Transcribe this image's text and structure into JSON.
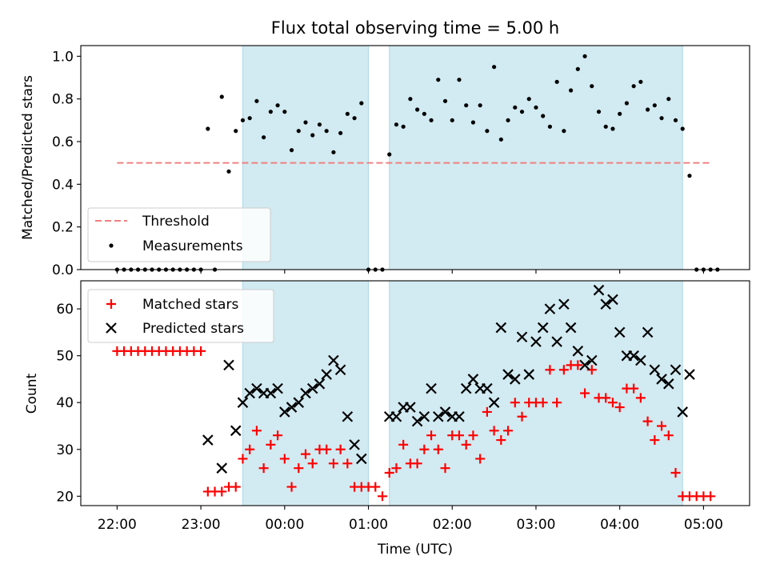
{
  "title": "Flux total observing time = 5.00 h",
  "colors": {
    "shade": "#add8e6",
    "threshold": "#f08080",
    "matched": "#ff0000",
    "predicted": "#000000",
    "measurement": "#000000"
  },
  "chart_data": [
    {
      "type": "scatter",
      "ylabel": "Matched/Predicted stars",
      "xlabel": "",
      "xlim": [
        "21:34",
        "05:33"
      ],
      "ylim": [
        0,
        1.05
      ],
      "yticks": [
        "0.0",
        "0.2",
        "0.4",
        "0.6",
        "0.8",
        "1.0"
      ],
      "grid": false,
      "legend": {
        "location": "lower-left",
        "entries": [
          "Threshold",
          "Measurements"
        ]
      },
      "shaded_intervals": [
        [
          "23:30",
          "01:00"
        ],
        [
          "01:15",
          "04:45"
        ]
      ],
      "threshold": {
        "name": "Threshold",
        "value": 0.5,
        "x": [
          "22:00",
          "05:05"
        ],
        "style": "dashed"
      },
      "series": [
        {
          "name": "Measurements",
          "points": [
            [
              "22:00",
              0
            ],
            [
              "22:05",
              0
            ],
            [
              "22:10",
              0
            ],
            [
              "22:15",
              0
            ],
            [
              "22:20",
              0
            ],
            [
              "22:25",
              0
            ],
            [
              "22:30",
              0
            ],
            [
              "22:35",
              0
            ],
            [
              "22:40",
              0
            ],
            [
              "22:45",
              0
            ],
            [
              "22:50",
              0
            ],
            [
              "22:55",
              0
            ],
            [
              "23:00",
              0
            ],
            [
              "23:05",
              0.66
            ],
            [
              "23:10",
              0
            ],
            [
              "23:15",
              0.81
            ],
            [
              "23:20",
              0.46
            ],
            [
              "23:25",
              0.65
            ],
            [
              "23:30",
              0.7
            ],
            [
              "23:35",
              0.71
            ],
            [
              "23:40",
              0.79
            ],
            [
              "23:45",
              0.62
            ],
            [
              "23:50",
              0.74
            ],
            [
              "23:55",
              0.77
            ],
            [
              "00:00",
              0.74
            ],
            [
              "00:05",
              0.56
            ],
            [
              "00:10",
              0.65
            ],
            [
              "00:15",
              0.69
            ],
            [
              "00:20",
              0.63
            ],
            [
              "00:25",
              0.68
            ],
            [
              "00:30",
              0.65
            ],
            [
              "00:35",
              0.55
            ],
            [
              "00:40",
              0.64
            ],
            [
              "00:45",
              0.73
            ],
            [
              "00:50",
              0.71
            ],
            [
              "00:55",
              0.78
            ],
            [
              "01:00",
              0
            ],
            [
              "01:05",
              0
            ],
            [
              "01:10",
              0
            ],
            [
              "01:15",
              0.54
            ],
            [
              "01:20",
              0.68
            ],
            [
              "01:25",
              0.67
            ],
            [
              "01:30",
              0.8
            ],
            [
              "01:35",
              0.75
            ],
            [
              "01:40",
              0.73
            ],
            [
              "01:45",
              0.7
            ],
            [
              "01:50",
              0.89
            ],
            [
              "01:55",
              0.79
            ],
            [
              "02:00",
              0.7
            ],
            [
              "02:05",
              0.89
            ],
            [
              "02:10",
              0.77
            ],
            [
              "02:15",
              0.69
            ],
            [
              "02:20",
              0.77
            ],
            [
              "02:25",
              0.65
            ],
            [
              "02:30",
              0.95
            ],
            [
              "02:35",
              0.61
            ],
            [
              "02:40",
              0.7
            ],
            [
              "02:45",
              0.76
            ],
            [
              "02:50",
              0.74
            ],
            [
              "02:55",
              0.8
            ],
            [
              "03:00",
              0.76
            ],
            [
              "03:05",
              0.72
            ],
            [
              "03:10",
              0.67
            ],
            [
              "03:15",
              0.88
            ],
            [
              "03:20",
              0.65
            ],
            [
              "03:25",
              0.84
            ],
            [
              "03:30",
              0.94
            ],
            [
              "03:35",
              1.0
            ],
            [
              "03:40",
              0.86
            ],
            [
              "03:45",
              0.74
            ],
            [
              "03:50",
              0.67
            ],
            [
              "03:55",
              0.66
            ],
            [
              "04:00",
              0.73
            ],
            [
              "04:05",
              0.78
            ],
            [
              "04:10",
              0.86
            ],
            [
              "04:15",
              0.88
            ],
            [
              "04:20",
              0.75
            ],
            [
              "04:25",
              0.77
            ],
            [
              "04:30",
              0.71
            ],
            [
              "04:35",
              0.8
            ],
            [
              "04:40",
              0.7
            ],
            [
              "04:45",
              0.66
            ],
            [
              "04:50",
              0.44
            ],
            [
              "04:55",
              0
            ],
            [
              "05:00",
              0
            ],
            [
              "05:05",
              0
            ],
            [
              "05:10",
              0
            ]
          ]
        }
      ]
    },
    {
      "type": "scatter",
      "xlabel": "Time (UTC)",
      "ylabel": "Count",
      "xlim": [
        "21:34",
        "05:33"
      ],
      "ylim": [
        18,
        66
      ],
      "xticks": [
        "22:00",
        "23:00",
        "00:00",
        "01:00",
        "02:00",
        "03:00",
        "04:00",
        "05:00"
      ],
      "yticks": [
        "20",
        "30",
        "40",
        "50",
        "60"
      ],
      "grid": false,
      "legend": {
        "location": "top-left",
        "entries": [
          "Matched stars",
          "Predicted stars"
        ]
      },
      "shaded_intervals": [
        [
          "23:30",
          "01:00"
        ],
        [
          "01:15",
          "04:45"
        ]
      ],
      "series": [
        {
          "name": "Matched stars",
          "marker": "plus",
          "points": [
            [
              "22:00",
              51
            ],
            [
              "22:05",
              51
            ],
            [
              "22:10",
              51
            ],
            [
              "22:15",
              51
            ],
            [
              "22:20",
              51
            ],
            [
              "22:25",
              51
            ],
            [
              "22:30",
              51
            ],
            [
              "22:35",
              51
            ],
            [
              "22:40",
              51
            ],
            [
              "22:45",
              51
            ],
            [
              "22:50",
              51
            ],
            [
              "22:55",
              51
            ],
            [
              "23:00",
              51
            ],
            [
              "23:05",
              21
            ],
            [
              "23:10",
              21
            ],
            [
              "23:15",
              21
            ],
            [
              "23:20",
              22
            ],
            [
              "23:25",
              22
            ],
            [
              "23:30",
              28
            ],
            [
              "23:35",
              30
            ],
            [
              "23:40",
              34
            ],
            [
              "23:45",
              26
            ],
            [
              "23:50",
              31
            ],
            [
              "23:55",
              33
            ],
            [
              "00:00",
              28
            ],
            [
              "00:05",
              22
            ],
            [
              "00:10",
              26
            ],
            [
              "00:15",
              29
            ],
            [
              "00:20",
              27
            ],
            [
              "00:25",
              30
            ],
            [
              "00:30",
              30
            ],
            [
              "00:35",
              27
            ],
            [
              "00:40",
              30
            ],
            [
              "00:45",
              27
            ],
            [
              "00:50",
              22
            ],
            [
              "00:55",
              22
            ],
            [
              "01:00",
              22
            ],
            [
              "01:05",
              22
            ],
            [
              "01:10",
              20
            ],
            [
              "01:15",
              25
            ],
            [
              "01:20",
              26
            ],
            [
              "01:25",
              31
            ],
            [
              "01:30",
              27
            ],
            [
              "01:35",
              27
            ],
            [
              "01:40",
              30
            ],
            [
              "01:45",
              33
            ],
            [
              "01:50",
              30
            ],
            [
              "01:55",
              26
            ],
            [
              "02:00",
              33
            ],
            [
              "02:05",
              33
            ],
            [
              "02:10",
              31
            ],
            [
              "02:15",
              33
            ],
            [
              "02:20",
              28
            ],
            [
              "02:25",
              38
            ],
            [
              "02:30",
              34
            ],
            [
              "02:35",
              32
            ],
            [
              "02:40",
              34
            ],
            [
              "02:45",
              40
            ],
            [
              "02:50",
              37
            ],
            [
              "02:55",
              40
            ],
            [
              "03:00",
              40
            ],
            [
              "03:05",
              40
            ],
            [
              "03:10",
              47
            ],
            [
              "03:15",
              40
            ],
            [
              "03:20",
              47
            ],
            [
              "03:25",
              48
            ],
            [
              "03:30",
              48
            ],
            [
              "03:35",
              42
            ],
            [
              "03:40",
              47
            ],
            [
              "03:45",
              41
            ],
            [
              "03:50",
              41
            ],
            [
              "03:55",
              40
            ],
            [
              "04:00",
              39
            ],
            [
              "04:05",
              43
            ],
            [
              "04:10",
              43
            ],
            [
              "04:15",
              41
            ],
            [
              "04:20",
              36
            ],
            [
              "04:25",
              32
            ],
            [
              "04:30",
              35
            ],
            [
              "04:35",
              33
            ],
            [
              "04:40",
              25
            ],
            [
              "04:45",
              20
            ],
            [
              "04:50",
              20
            ],
            [
              "04:55",
              20
            ],
            [
              "05:00",
              20
            ],
            [
              "05:05",
              20
            ]
          ]
        },
        {
          "name": "Predicted stars",
          "marker": "x",
          "points": [
            [
              "23:05",
              32
            ],
            [
              "23:15",
              26
            ],
            [
              "23:20",
              48
            ],
            [
              "23:25",
              34
            ],
            [
              "23:30",
              40
            ],
            [
              "23:35",
              42
            ],
            [
              "23:40",
              43
            ],
            [
              "23:45",
              42
            ],
            [
              "23:50",
              42
            ],
            [
              "23:55",
              43
            ],
            [
              "00:00",
              38
            ],
            [
              "00:05",
              39
            ],
            [
              "00:10",
              40
            ],
            [
              "00:15",
              42
            ],
            [
              "00:20",
              43
            ],
            [
              "00:25",
              44
            ],
            [
              "00:30",
              46
            ],
            [
              "00:35",
              49
            ],
            [
              "00:40",
              47
            ],
            [
              "00:45",
              37
            ],
            [
              "00:50",
              31
            ],
            [
              "00:55",
              28
            ],
            [
              "01:15",
              37
            ],
            [
              "01:20",
              37
            ],
            [
              "01:25",
              39
            ],
            [
              "01:30",
              39
            ],
            [
              "01:35",
              36
            ],
            [
              "01:40",
              37
            ],
            [
              "01:45",
              43
            ],
            [
              "01:50",
              37
            ],
            [
              "01:55",
              38
            ],
            [
              "02:00",
              37
            ],
            [
              "02:05",
              37
            ],
            [
              "02:10",
              43
            ],
            [
              "02:15",
              45
            ],
            [
              "02:20",
              43
            ],
            [
              "02:25",
              43
            ],
            [
              "02:30",
              40
            ],
            [
              "02:35",
              56
            ],
            [
              "02:40",
              46
            ],
            [
              "02:45",
              45
            ],
            [
              "02:50",
              54
            ],
            [
              "02:55",
              46
            ],
            [
              "03:00",
              53
            ],
            [
              "03:05",
              56
            ],
            [
              "03:10",
              60
            ],
            [
              "03:15",
              53
            ],
            [
              "03:20",
              61
            ],
            [
              "03:25",
              56
            ],
            [
              "03:30",
              51
            ],
            [
              "03:35",
              48
            ],
            [
              "03:40",
              49
            ],
            [
              "03:45",
              64
            ],
            [
              "03:50",
              61
            ],
            [
              "03:55",
              62
            ],
            [
              "04:00",
              55
            ],
            [
              "04:05",
              50
            ],
            [
              "04:10",
              50
            ],
            [
              "04:15",
              49
            ],
            [
              "04:20",
              55
            ],
            [
              "04:25",
              47
            ],
            [
              "04:30",
              45
            ],
            [
              "04:35",
              44
            ],
            [
              "04:40",
              47
            ],
            [
              "04:45",
              38
            ],
            [
              "04:50",
              46
            ]
          ]
        }
      ]
    }
  ]
}
